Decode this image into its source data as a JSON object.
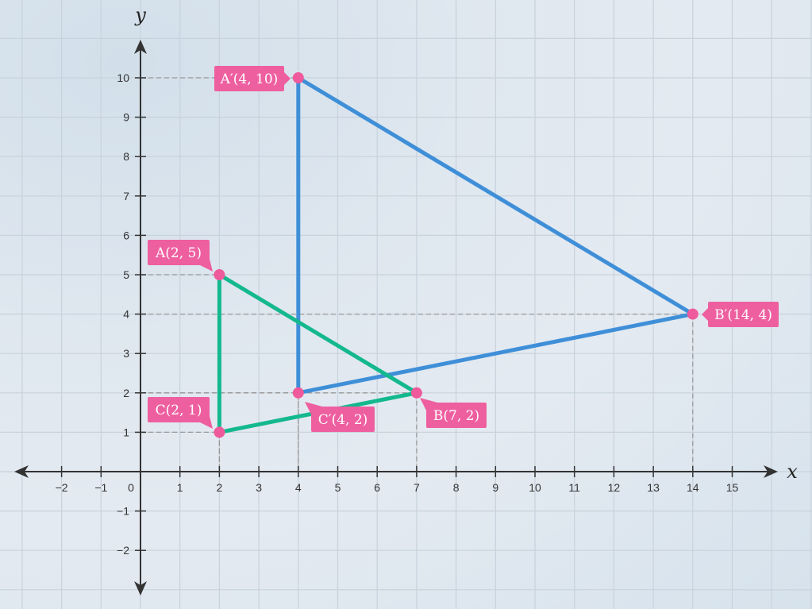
{
  "axes": {
    "x_label": "x",
    "y_label": "y",
    "x_range": [
      -3,
      16
    ],
    "y_range": [
      -3,
      11
    ],
    "x_ticks": [
      -2,
      -1,
      0,
      1,
      2,
      3,
      4,
      5,
      6,
      7,
      8,
      9,
      10,
      11,
      12,
      13,
      14,
      15
    ],
    "y_ticks": [
      -2,
      -1,
      1,
      2,
      3,
      4,
      5,
      6,
      7,
      8,
      9,
      10
    ],
    "grid": true
  },
  "colors": {
    "original_triangle": "#14b88e",
    "image_triangle": "#3f8fd8",
    "point": "#ee5a9b",
    "label_bg": "#ee5fa0"
  },
  "triangles": [
    {
      "name": "original",
      "points": [
        {
          "id": "A",
          "x": 2,
          "y": 5,
          "label": "A(2, 5)"
        },
        {
          "id": "B",
          "x": 7,
          "y": 2,
          "label": "B(7, 2)"
        },
        {
          "id": "C",
          "x": 2,
          "y": 1,
          "label": "C(2, 1)"
        }
      ]
    },
    {
      "name": "image",
      "points": [
        {
          "id": "A'",
          "x": 4,
          "y": 10,
          "label": "A′(4, 10)"
        },
        {
          "id": "B'",
          "x": 14,
          "y": 4,
          "label": "B′(14, 4)"
        },
        {
          "id": "C'",
          "x": 4,
          "y": 2,
          "label": "C′(4, 2)"
        }
      ]
    }
  ]
}
